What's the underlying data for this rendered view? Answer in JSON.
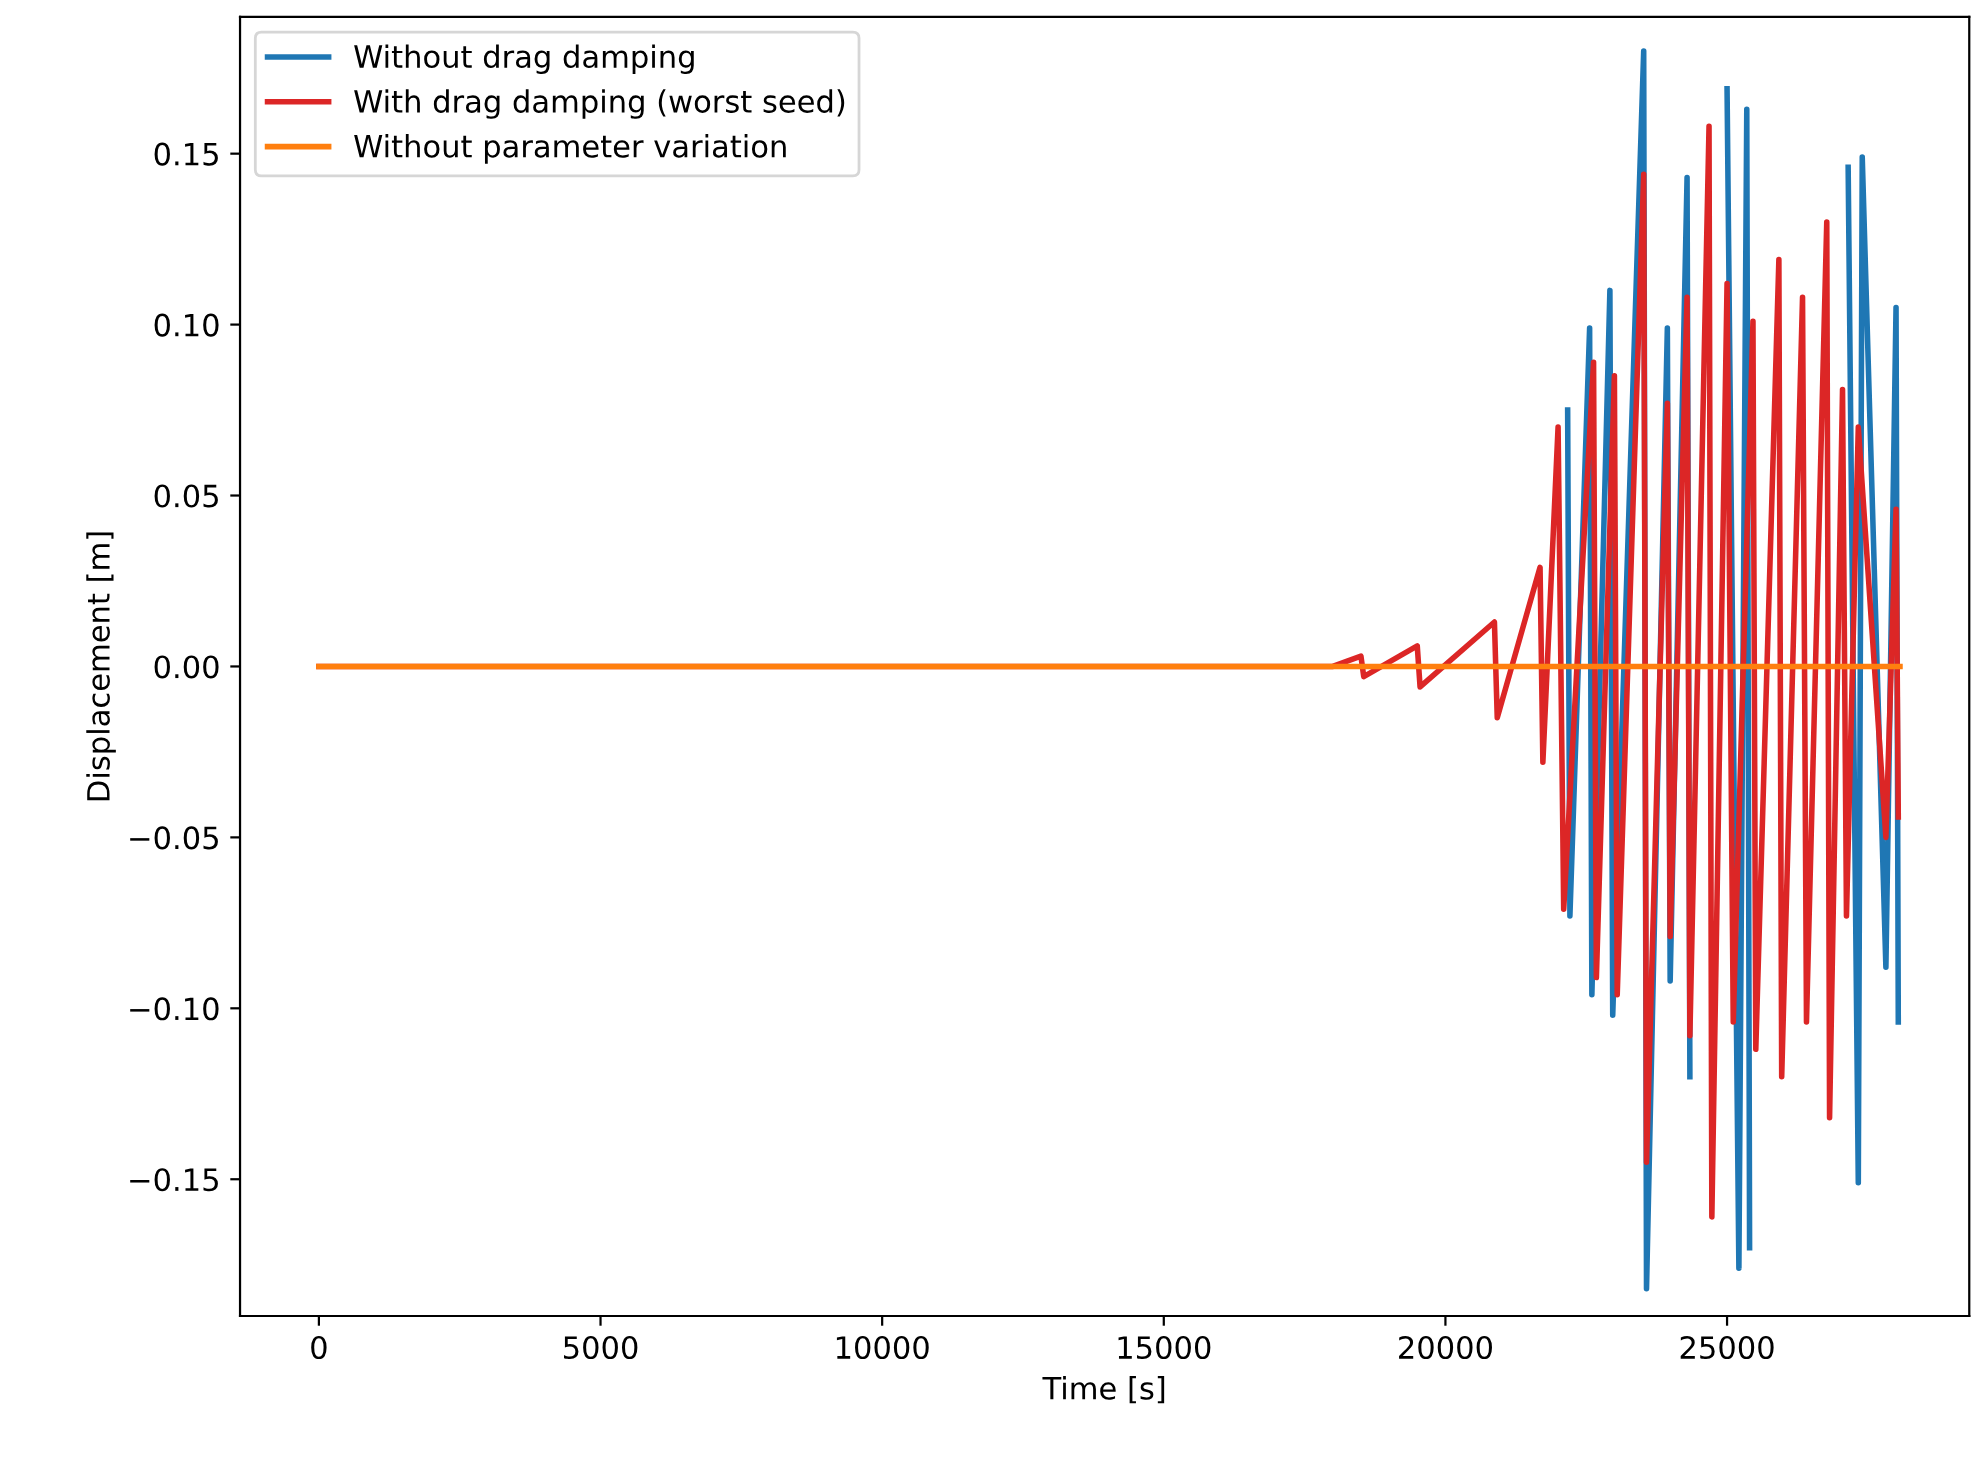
{
  "chart_data": {
    "type": "line",
    "xlabel": "Time [s]",
    "ylabel": "Displacement [m]",
    "xlim": [
      -1400,
      29300
    ],
    "ylim": [
      -0.19,
      0.19
    ],
    "xticks": [
      0,
      5000,
      10000,
      15000,
      20000,
      25000
    ],
    "yticks": [
      {
        "value": -0.15,
        "label": "−0.15"
      },
      {
        "value": -0.1,
        "label": "−0.10"
      },
      {
        "value": -0.05,
        "label": "−0.05"
      },
      {
        "value": 0,
        "label": "0.00"
      },
      {
        "value": 0.05,
        "label": "0.05"
      },
      {
        "value": 0.1,
        "label": "0.10"
      },
      {
        "value": 0.15,
        "label": "0.15"
      }
    ],
    "grid": false,
    "legend": "top left",
    "marker": "none",
    "line_style": "solid",
    "series": [
      {
        "name": "Without drag damping",
        "color": "#1f77b4",
        "x": [
          22170,
          22210,
          22560,
          22600,
          22920,
          22970,
          23520,
          23570,
          23940,
          23990,
          24290,
          24340,
          24650,
          24700,
          25000,
          25210,
          25350,
          25400,
          25900,
          25950,
          26870,
          26920,
          27150,
          27330,
          27400,
          27820,
          28000,
          28040
        ],
        "values": [
          0.075,
          -0.073,
          0.099,
          -0.096,
          0.11,
          -0.102,
          0.18,
          -0.182,
          0.099,
          -0.092,
          0.143,
          -0.12,
          null,
          null,
          0.169,
          -0.176,
          0.163,
          -0.17,
          null,
          null,
          null,
          null,
          0.146,
          -0.151,
          0.149,
          -0.088,
          0.105,
          -0.104
        ]
      },
      {
        "name": "With drag damping (worst seed)",
        "color": "#dc2626",
        "x": [
          0,
          18000,
          18500,
          18550,
          19500,
          19550,
          20870,
          20920,
          21680,
          21730,
          22000,
          22100,
          22630,
          22680,
          23000,
          23050,
          23520,
          23570,
          23940,
          23990,
          24290,
          24340,
          24680,
          24730,
          25000,
          25110,
          25460,
          25510,
          25920,
          25970,
          26340,
          26410,
          26770,
          26820,
          27050,
          27120,
          27330,
          27820,
          28000,
          28040
        ],
        "values": [
          0,
          0,
          0.003,
          -0.003,
          0.006,
          -0.006,
          0.013,
          -0.015,
          0.029,
          -0.028,
          0.07,
          -0.071,
          0.089,
          -0.091,
          0.085,
          -0.096,
          0.144,
          -0.145,
          0.077,
          -0.079,
          0.108,
          -0.108,
          0.158,
          -0.161,
          0.112,
          -0.104,
          0.101,
          -0.112,
          0.119,
          -0.12,
          0.108,
          -0.104,
          0.13,
          -0.132,
          0.081,
          -0.073,
          0.07,
          -0.05,
          0.046,
          -0.044
        ]
      },
      {
        "name": "Without parameter variation",
        "color": "#ff7f0e",
        "x": [
          0,
          28070
        ],
        "values": [
          0,
          0
        ]
      }
    ]
  }
}
